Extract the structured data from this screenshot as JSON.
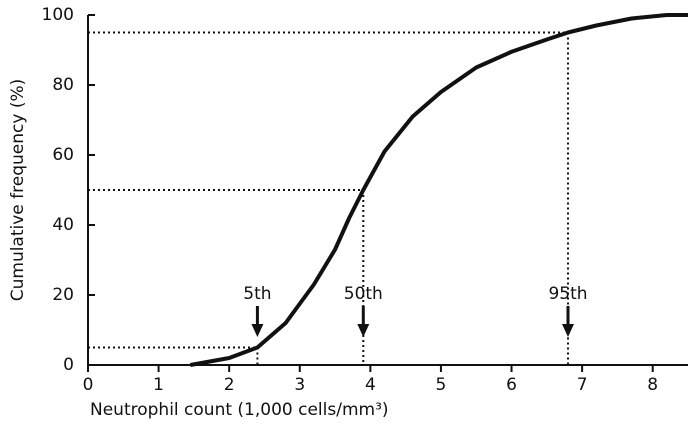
{
  "chart_data": {
    "type": "line",
    "x_label": "Neutrophil count (1,000 cells/mm³)",
    "y_label": "Cumulative frequency (%)",
    "x": [
      1.45,
      2,
      2.4,
      2.8,
      3.2,
      3.5,
      3.7,
      3.9,
      4.2,
      4.6,
      5,
      5.5,
      6,
      6.5,
      6.8,
      7.2,
      7.7,
      8.2,
      8.5
    ],
    "series": [
      {
        "color": "#111111",
        "values": [
          0,
          2,
          5,
          12,
          23,
          33,
          42,
          50,
          61,
          71,
          78,
          85,
          89.5,
          93,
          95,
          97,
          99,
          100,
          100
        ]
      }
    ],
    "xlim": [
      0,
      8.5
    ],
    "ylim": [
      0,
      100
    ],
    "xticks": [
      0,
      1,
      2,
      3,
      4,
      5,
      6,
      7,
      8
    ],
    "yticks": [
      0,
      20,
      40,
      60,
      80,
      100
    ],
    "annotations": [
      {
        "label": "5th",
        "x": 2.4,
        "y": 5
      },
      {
        "label": "50th",
        "x": 3.9,
        "y": 50
      },
      {
        "label": "95th",
        "x": 6.8,
        "y": 95
      }
    ]
  }
}
